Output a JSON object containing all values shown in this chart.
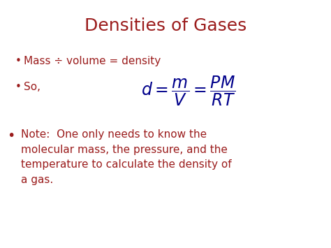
{
  "title": "Densities of Gases",
  "title_color": "#9B1C1C",
  "title_fontsize": 18,
  "bullet1": "Mass ÷ volume = density",
  "bullet1_color": "#9B1C1C",
  "bullet1_fontsize": 11,
  "bullet2_prefix": "So,",
  "bullet2_prefix_color": "#9B1C1C",
  "bullet2_prefix_fontsize": 11,
  "equation_color": "#00008B",
  "equation_fontsize": 17,
  "bullet3_line1": "Note:  One only needs to know the",
  "bullet3_line2": "molecular mass, the pressure, and the",
  "bullet3_line3": "temperature to calculate the density of",
  "bullet3_line4": "a gas.",
  "bullet3_color": "#9B1C1C",
  "bullet3_fontsize": 11,
  "background_color": "#ffffff"
}
